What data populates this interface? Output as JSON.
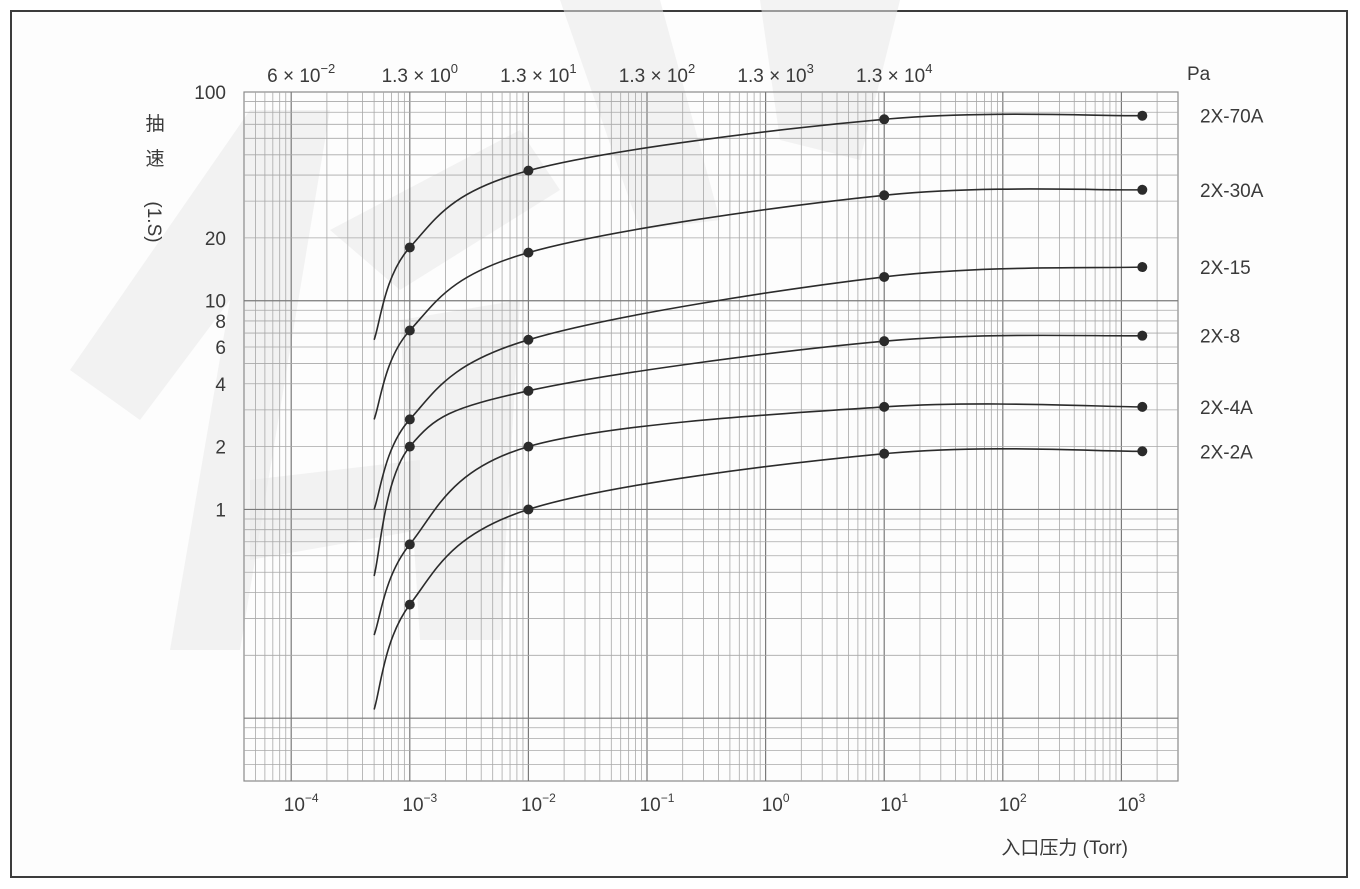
{
  "chart_data": {
    "type": "line",
    "title": "",
    "xlabel": "入口压力 (Torr)",
    "ylabel_chars": [
      "抽",
      "速",
      "(1.S)"
    ],
    "x_scale": "log",
    "y_scale": "log",
    "xlim": [
      4e-05,
      3000
    ],
    "ylim": [
      0.05,
      100
    ],
    "grid": true,
    "x_ticks": [
      {
        "value": 0.0001,
        "base": "10",
        "exp": "−4"
      },
      {
        "value": 0.001,
        "base": "10",
        "exp": "−3"
      },
      {
        "value": 0.01,
        "base": "10",
        "exp": "−2"
      },
      {
        "value": 0.1,
        "base": "10",
        "exp": "−1"
      },
      {
        "value": 1,
        "base": "10",
        "exp": "0"
      },
      {
        "value": 10,
        "base": "10",
        "exp": "1"
      },
      {
        "value": 100,
        "base": "10",
        "exp": "2"
      },
      {
        "value": 1000,
        "base": "10",
        "exp": "3"
      }
    ],
    "top_ticks": [
      {
        "value": 0.0001,
        "base": "6 × 10",
        "exp": "−2"
      },
      {
        "value": 0.001,
        "base": "1.3 × 10",
        "exp": "0"
      },
      {
        "value": 0.01,
        "base": "1.3 × 10",
        "exp": "1"
      },
      {
        "value": 0.1,
        "base": "1.3 × 10",
        "exp": "2"
      },
      {
        "value": 1,
        "base": "1.3 × 10",
        "exp": "3"
      },
      {
        "value": 10,
        "base": "1.3 × 10",
        "exp": "4"
      }
    ],
    "top_unit": "Pa",
    "y_ticks": [
      {
        "value": 100,
        "label": "100"
      },
      {
        "value": 20,
        "label": "20"
      },
      {
        "value": 10,
        "label": "10"
      },
      {
        "value": 8,
        "label": "8"
      },
      {
        "value": 6,
        "label": "6"
      },
      {
        "value": 4,
        "label": "4"
      },
      {
        "value": 2,
        "label": "2"
      },
      {
        "value": 1,
        "label": "1"
      }
    ],
    "series": [
      {
        "name": "2X-70A",
        "x": [
          0.0005,
          0.001,
          0.01,
          10,
          1500
        ],
        "y": [
          6.5,
          18,
          42,
          74,
          77
        ]
      },
      {
        "name": "2X-30A",
        "x": [
          0.0005,
          0.001,
          0.01,
          10,
          1500
        ],
        "y": [
          2.7,
          7.2,
          17,
          32,
          34
        ]
      },
      {
        "name": "2X-15",
        "x": [
          0.0005,
          0.001,
          0.01,
          10,
          1500
        ],
        "y": [
          1.0,
          2.7,
          6.5,
          13,
          14.5
        ]
      },
      {
        "name": "2X-8",
        "x": [
          0.0005,
          0.001,
          0.01,
          10,
          1500
        ],
        "y": [
          0.48,
          2.0,
          3.7,
          6.4,
          6.8
        ]
      },
      {
        "name": "2X-4A",
        "x": [
          0.0005,
          0.001,
          0.01,
          10,
          1500
        ],
        "y": [
          0.25,
          0.68,
          2.0,
          3.1,
          3.1
        ]
      },
      {
        "name": "2X-2A",
        "x": [
          0.0005,
          0.001,
          0.01,
          10,
          1500
        ],
        "y": [
          0.11,
          0.35,
          1.0,
          1.85,
          1.9
        ]
      }
    ]
  }
}
